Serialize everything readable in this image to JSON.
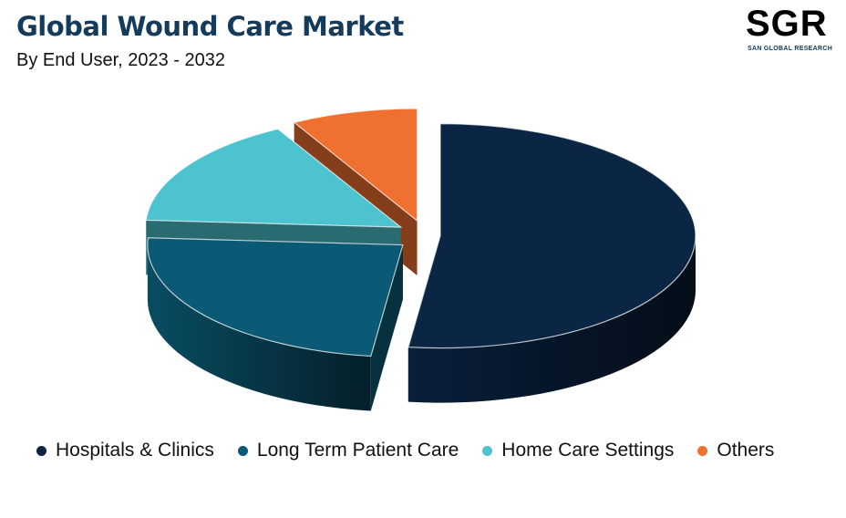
{
  "header": {
    "title": "Global Wound Care Market",
    "subtitle": "By End User, 2023 - 2032"
  },
  "logo": {
    "text": "SGR",
    "tagline": "SAN GLOBAL RESEARCH",
    "color": "#2aaec2"
  },
  "chart_data": {
    "type": "pie",
    "title": "Global Wound Care Market",
    "subtitle": "By End User, 2023 - 2032",
    "style": "3d-exploded",
    "legend_position": "bottom",
    "series": [
      {
        "name": "Hospitals & Clinics",
        "value": 52,
        "color": "#0b2545"
      },
      {
        "name": "Long Term Patient Care",
        "value": 24,
        "color": "#0b5a75"
      },
      {
        "name": "Home Care Settings",
        "value": 16,
        "color": "#4cc3cf"
      },
      {
        "name": "Others",
        "value": 8,
        "color": "#f07030"
      }
    ]
  }
}
